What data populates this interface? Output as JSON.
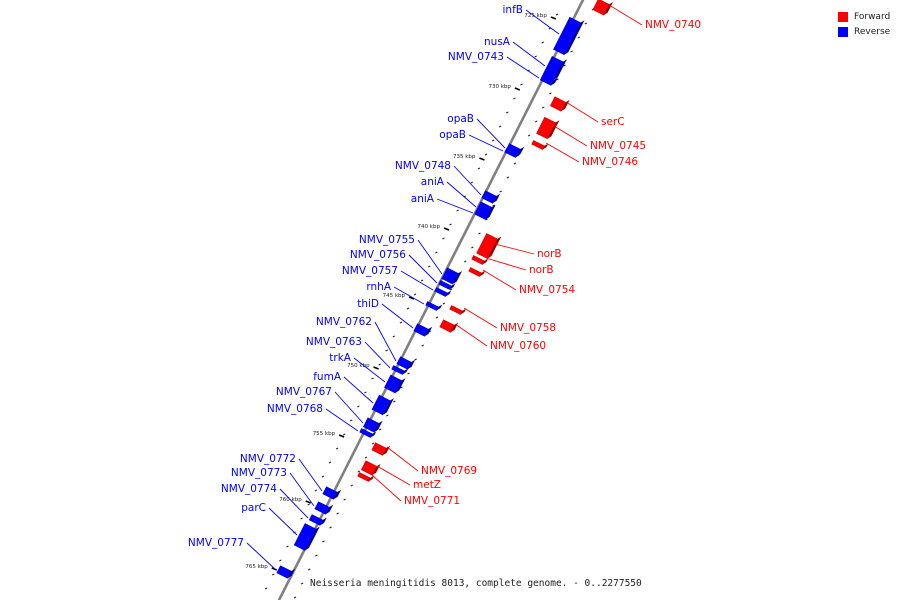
{
  "title": "Neisseria meningitidis 8013, complete genome. - 0..2277550",
  "legend": [
    {
      "label": "Forward",
      "color": "#ff0000"
    },
    {
      "label": "Reverse",
      "color": "#0000ff"
    }
  ],
  "colors": {
    "forward": "#ff0000",
    "reverse": "#0000ff",
    "backbone": "#808080"
  },
  "ticks": [
    "725 kbp",
    "730 kbp",
    "735 kbp",
    "740 kbp",
    "745 kbp",
    "750 kbp",
    "755 kbp",
    "760 kbp",
    "765 kbp"
  ],
  "genes": [
    {
      "name": "infB",
      "strand": "reverse"
    },
    {
      "name": "nusA",
      "strand": "reverse"
    },
    {
      "name": "NMV_0743",
      "strand": "reverse"
    },
    {
      "name": "opaB",
      "strand": "reverse"
    },
    {
      "name": "opaB",
      "strand": "reverse"
    },
    {
      "name": "NMV_0748",
      "strand": "reverse"
    },
    {
      "name": "aniA",
      "strand": "reverse"
    },
    {
      "name": "aniA",
      "strand": "reverse"
    },
    {
      "name": "NMV_0755",
      "strand": "reverse"
    },
    {
      "name": "NMV_0756",
      "strand": "reverse"
    },
    {
      "name": "NMV_0757",
      "strand": "reverse"
    },
    {
      "name": "rnhA",
      "strand": "reverse"
    },
    {
      "name": "thiD",
      "strand": "reverse"
    },
    {
      "name": "NMV_0762",
      "strand": "reverse"
    },
    {
      "name": "NMV_0763",
      "strand": "reverse"
    },
    {
      "name": "trkA",
      "strand": "reverse"
    },
    {
      "name": "fumA",
      "strand": "reverse"
    },
    {
      "name": "NMV_0767",
      "strand": "reverse"
    },
    {
      "name": "NMV_0768",
      "strand": "reverse"
    },
    {
      "name": "NMV_0772",
      "strand": "reverse"
    },
    {
      "name": "NMV_0773",
      "strand": "reverse"
    },
    {
      "name": "NMV_0774",
      "strand": "reverse"
    },
    {
      "name": "parC",
      "strand": "reverse"
    },
    {
      "name": "NMV_0777",
      "strand": "reverse"
    },
    {
      "name": "NMV_0740",
      "strand": "forward"
    },
    {
      "name": "serC",
      "strand": "forward"
    },
    {
      "name": "NMV_0745",
      "strand": "forward"
    },
    {
      "name": "NMV_0746",
      "strand": "forward"
    },
    {
      "name": "norB",
      "strand": "forward"
    },
    {
      "name": "norB",
      "strand": "forward"
    },
    {
      "name": "NMV_0754",
      "strand": "forward"
    },
    {
      "name": "NMV_0758",
      "strand": "forward"
    },
    {
      "name": "NMV_0760",
      "strand": "forward"
    },
    {
      "name": "NMV_0769",
      "strand": "forward"
    },
    {
      "name": "metZ",
      "strand": "forward"
    },
    {
      "name": "NMV_0771",
      "strand": "forward"
    }
  ]
}
